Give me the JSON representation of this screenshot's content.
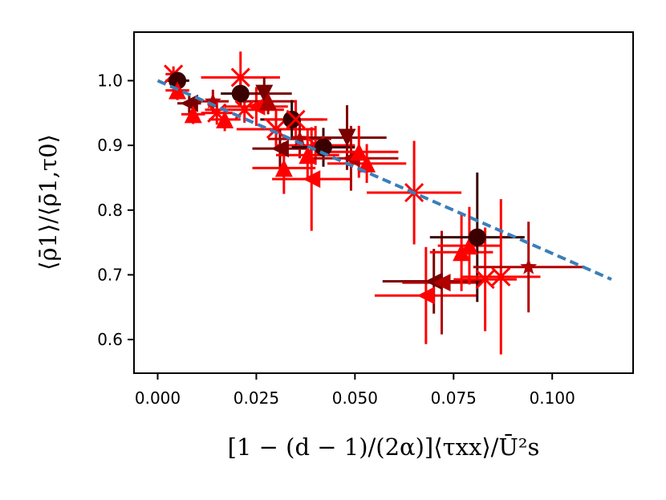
{
  "chart_data": {
    "type": "scatter",
    "xlabel": "[1 − (d − 1)/(2α)]⟨τxx⟩/Ū²s",
    "ylabel": "⟨ρ̄1⟩/⟨ρ̄1,τ0⟩",
    "xlim": [
      -0.006,
      0.1205
    ],
    "ylim": [
      0.548,
      1.075
    ],
    "xticks": [
      0.0,
      0.025,
      0.05,
      0.075,
      0.1
    ],
    "xtick_labels": [
      "0.000",
      "0.025",
      "0.050",
      "0.075",
      "0.100"
    ],
    "yticks": [
      0.6,
      0.7,
      0.8,
      0.9,
      1.0
    ],
    "ytick_labels": [
      "0.6",
      "0.7",
      "0.8",
      "0.9",
      "1.0"
    ],
    "grid": false,
    "fit_line": {
      "style": "dashed",
      "color": "#3a7fb8",
      "points": [
        [
          0.0,
          1.0
        ],
        [
          0.115,
          0.693
        ]
      ]
    },
    "colors": {
      "dark": "#3a0000",
      "maroon": "#7a0000",
      "crimson": "#b00000",
      "red": "#ff0000",
      "spine": "#000000"
    },
    "points": [
      {
        "x": 0.004,
        "y": 1.01,
        "xerr": 0.002,
        "yerr": 0.012,
        "marker": "x",
        "color": "#ff0000"
      },
      {
        "x": 0.005,
        "y": 1.0,
        "xerr": 0.003,
        "yerr": 0.012,
        "marker": "circle",
        "color": "#3a0000"
      },
      {
        "x": 0.005,
        "y": 0.985,
        "xerr": 0.003,
        "yerr": 0.015,
        "marker": "tri-up",
        "color": "#ff0000"
      },
      {
        "x": 0.008,
        "y": 0.965,
        "xerr": 0.003,
        "yerr": 0.015,
        "marker": "tri-left",
        "color": "#7a0000"
      },
      {
        "x": 0.009,
        "y": 0.948,
        "xerr": 0.003,
        "yerr": 0.015,
        "marker": "tri-up",
        "color": "#ff0000"
      },
      {
        "x": 0.014,
        "y": 0.968,
        "xerr": 0.004,
        "yerr": 0.018,
        "marker": "star",
        "color": "#b00000"
      },
      {
        "x": 0.015,
        "y": 0.95,
        "xerr": 0.004,
        "yerr": 0.018,
        "marker": "x",
        "color": "#ff0000"
      },
      {
        "x": 0.017,
        "y": 0.94,
        "xerr": 0.004,
        "yerr": 0.018,
        "marker": "tri-up",
        "color": "#ff0000"
      },
      {
        "x": 0.021,
        "y": 0.98,
        "xerr": 0.005,
        "yerr": 0.02,
        "marker": "circle",
        "color": "#3a0000"
      },
      {
        "x": 0.021,
        "y": 1.005,
        "xerr": 0.01,
        "yerr": 0.04,
        "marker": "x",
        "color": "#ff0000"
      },
      {
        "x": 0.022,
        "y": 0.955,
        "xerr": 0.01,
        "yerr": 0.02,
        "marker": "x",
        "color": "#ff0000"
      },
      {
        "x": 0.025,
        "y": 0.96,
        "xerr": 0.008,
        "yerr": 0.03,
        "marker": "tri-left",
        "color": "#ff0000"
      },
      {
        "x": 0.027,
        "y": 0.98,
        "xerr": 0.007,
        "yerr": 0.025,
        "marker": "tri-down",
        "color": "#7a0000"
      },
      {
        "x": 0.028,
        "y": 0.968,
        "xerr": 0.007,
        "yerr": 0.02,
        "marker": "tri-up",
        "color": "#b00000"
      },
      {
        "x": 0.03,
        "y": 0.925,
        "xerr": 0.01,
        "yerr": 0.03,
        "marker": "x",
        "color": "#ff0000"
      },
      {
        "x": 0.031,
        "y": 0.895,
        "xerr": 0.007,
        "yerr": 0.03,
        "marker": "tri-left",
        "color": "#7a0000"
      },
      {
        "x": 0.032,
        "y": 0.865,
        "xerr": 0.008,
        "yerr": 0.04,
        "marker": "tri-up",
        "color": "#ff0000"
      },
      {
        "x": 0.034,
        "y": 0.94,
        "xerr": 0.008,
        "yerr": 0.03,
        "marker": "circle",
        "color": "#3a0000"
      },
      {
        "x": 0.035,
        "y": 0.94,
        "xerr": 0.008,
        "yerr": 0.03,
        "marker": "x",
        "color": "#ff0000"
      },
      {
        "x": 0.036,
        "y": 0.91,
        "xerr": 0.008,
        "yerr": 0.03,
        "marker": "star",
        "color": "#b00000"
      },
      {
        "x": 0.038,
        "y": 0.885,
        "xerr": 0.008,
        "yerr": 0.04,
        "marker": "tri-up",
        "color": "#ff0000"
      },
      {
        "x": 0.039,
        "y": 0.848,
        "xerr": 0.01,
        "yerr": 0.08,
        "marker": "tri-left",
        "color": "#ff0000"
      },
      {
        "x": 0.04,
        "y": 0.9,
        "xerr": 0.01,
        "yerr": 0.03,
        "marker": "x",
        "color": "#ff0000"
      },
      {
        "x": 0.042,
        "y": 0.897,
        "xerr": 0.008,
        "yerr": 0.03,
        "marker": "circle",
        "color": "#3a0000"
      },
      {
        "x": 0.048,
        "y": 0.912,
        "xerr": 0.01,
        "yerr": 0.05,
        "marker": "tri-down",
        "color": "#7a0000"
      },
      {
        "x": 0.049,
        "y": 0.88,
        "xerr": 0.012,
        "yerr": 0.05,
        "marker": "tri-left",
        "color": "#b00000"
      },
      {
        "x": 0.051,
        "y": 0.89,
        "xerr": 0.01,
        "yerr": 0.04,
        "marker": "tri-up",
        "color": "#ff0000"
      },
      {
        "x": 0.053,
        "y": 0.872,
        "xerr": 0.01,
        "yerr": 0.03,
        "marker": "tri-up",
        "color": "#ff0000"
      },
      {
        "x": 0.065,
        "y": 0.827,
        "xerr": 0.012,
        "yerr": 0.08,
        "marker": "x",
        "color": "#ff0000"
      },
      {
        "x": 0.068,
        "y": 0.668,
        "xerr": 0.013,
        "yerr": 0.075,
        "marker": "tri-left",
        "color": "#ff0000"
      },
      {
        "x": 0.07,
        "y": 0.69,
        "xerr": 0.013,
        "yerr": 0.05,
        "marker": "tri-left",
        "color": "#7a0000"
      },
      {
        "x": 0.072,
        "y": 0.688,
        "xerr": 0.01,
        "yerr": 0.08,
        "marker": "tri-left",
        "color": "#b00000"
      },
      {
        "x": 0.077,
        "y": 0.735,
        "xerr": 0.008,
        "yerr": 0.06,
        "marker": "tri-up",
        "color": "#ff0000"
      },
      {
        "x": 0.079,
        "y": 0.745,
        "xerr": 0.008,
        "yerr": 0.06,
        "marker": "tri-up",
        "color": "#ff0000"
      },
      {
        "x": 0.081,
        "y": 0.758,
        "xerr": 0.012,
        "yerr": 0.1,
        "marker": "circle",
        "color": "#3a0000"
      },
      {
        "x": 0.083,
        "y": 0.693,
        "xerr": 0.008,
        "yerr": 0.08,
        "marker": "x",
        "color": "#ff0000"
      },
      {
        "x": 0.087,
        "y": 0.697,
        "xerr": 0.01,
        "yerr": 0.12,
        "marker": "x",
        "color": "#ff0000"
      },
      {
        "x": 0.094,
        "y": 0.712,
        "xerr": 0.014,
        "yerr": 0.07,
        "marker": "star",
        "color": "#b00000"
      }
    ]
  }
}
